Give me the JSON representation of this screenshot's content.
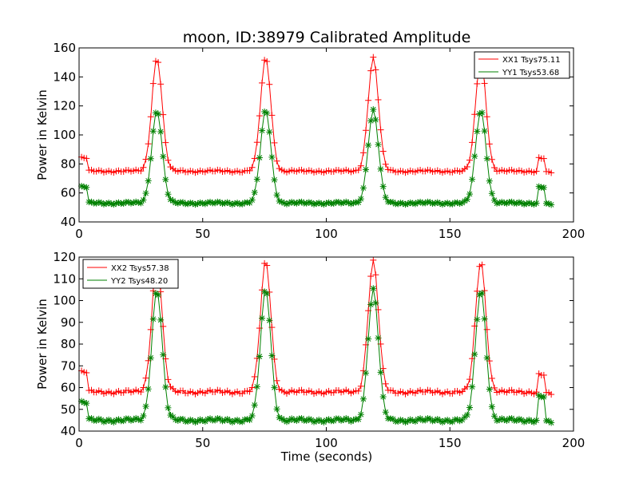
{
  "title": "moon, ID:38979 Calibrated Amplitude",
  "chart_data": [
    {
      "type": "line",
      "title": "moon, ID:38979 Calibrated Amplitude",
      "xlabel": "",
      "ylabel": "Power in Kelvin",
      "xlim": [
        0,
        200
      ],
      "ylim": [
        40,
        160
      ],
      "xticks": [
        0,
        50,
        100,
        150,
        200
      ],
      "yticks": [
        40,
        60,
        80,
        100,
        120,
        140,
        160
      ],
      "grid": false,
      "legend_position": "top-right",
      "series": [
        {
          "name": "XX1 Tsys75.11",
          "color": "#ff0000",
          "marker": "+",
          "baseline": 75,
          "peak": 153,
          "start": 84,
          "end_bump": 84,
          "end": 74
        },
        {
          "name": "YY1 Tsys53.68",
          "color": "#008000",
          "marker": "*",
          "baseline": 53,
          "peak": 117,
          "start": 64,
          "end_bump": 64,
          "end": 52
        }
      ],
      "peaks_x": [
        31.5,
        75.5,
        119,
        162.5
      ],
      "time_range": [
        1,
        191
      ]
    },
    {
      "type": "line",
      "xlabel": "Time (seconds)",
      "ylabel": "Power in Kelvin",
      "xlim": [
        0,
        200
      ],
      "ylim": [
        40,
        120
      ],
      "xticks": [
        0,
        50,
        100,
        150,
        200
      ],
      "yticks": [
        40,
        50,
        60,
        70,
        80,
        90,
        100,
        110,
        120
      ],
      "grid": false,
      "legend_position": "top-left",
      "series": [
        {
          "name": "XX2 Tsys57.38",
          "color": "#ff0000",
          "marker": "+",
          "baseline": 58,
          "peak": 118,
          "start": 67,
          "end_bump": 66,
          "end": 57
        },
        {
          "name": "YY2 Tsys48.20",
          "color": "#008000",
          "marker": "*",
          "baseline": 45,
          "peak": 105,
          "start": 53,
          "end_bump": 56,
          "end": 44
        }
      ],
      "peaks_x": [
        31.5,
        75.5,
        119,
        162.5
      ],
      "time_range": [
        1,
        191
      ]
    }
  ]
}
